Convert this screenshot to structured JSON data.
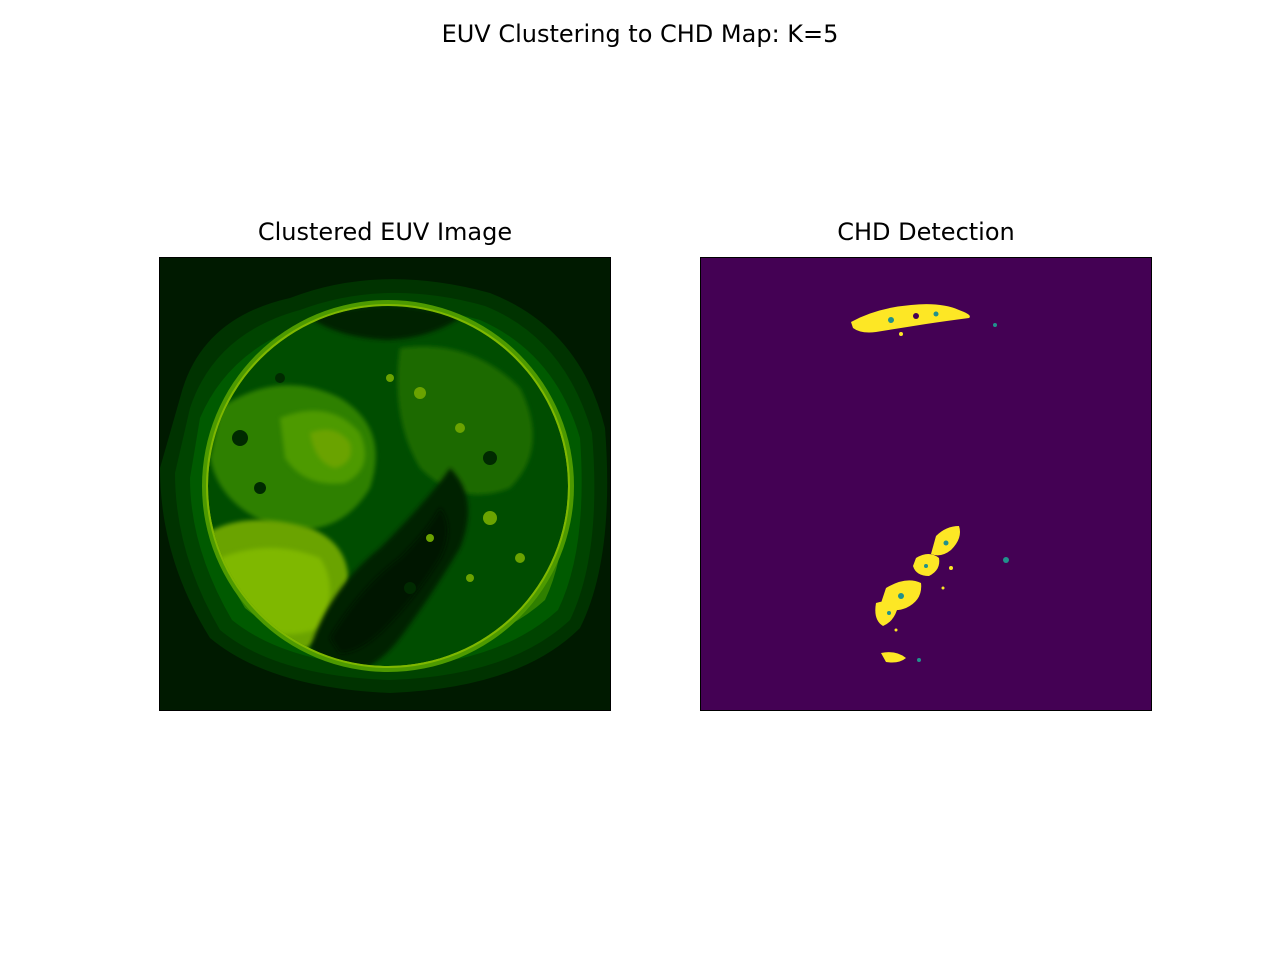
{
  "figure": {
    "title": "EUV Clustering to CHD Map: K=5"
  },
  "panels": [
    {
      "title": "Clustered EUV Image",
      "image": "clustered-euv-sun-disk"
    },
    {
      "title": "CHD Detection",
      "image": "coronal-hole-detection-mask"
    }
  ],
  "colors": {
    "euv_background": "#001a00",
    "euv_cluster_1": "#003300",
    "euv_cluster_2": "#005a00",
    "euv_cluster_3": "#2f8000",
    "euv_cluster_4": "#6aa300",
    "euv_cluster_5": "#7fb800",
    "chd_background": "#440154",
    "chd_detected": "#fde725",
    "chd_edge": "#21918c"
  }
}
